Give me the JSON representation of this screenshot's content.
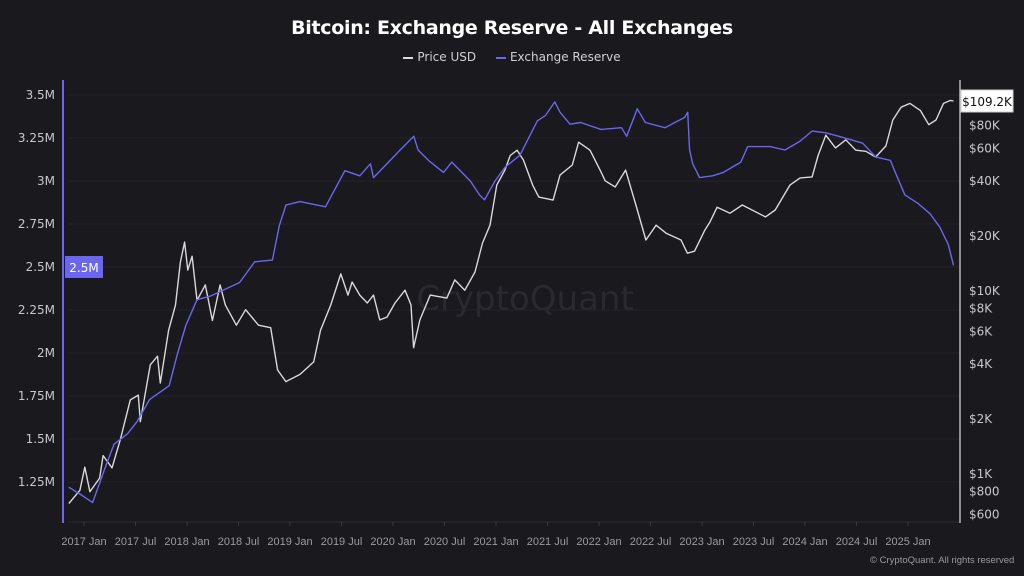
{
  "chart_data": {
    "type": "line",
    "title": "Bitcoin: Exchange Reserve - All Exchanges",
    "legend_position": "top",
    "grid": true,
    "watermark": "CryptoQuant",
    "copyright": "© CryptoQuant. All rights reserved",
    "x_ticks": [
      "2017 Jan",
      "2017 Jul",
      "2018 Jan",
      "2018 Jul",
      "2019 Jan",
      "2019 Jul",
      "2020 Jan",
      "2020 Jul",
      "2021 Jan",
      "2021 Jul",
      "2022 Jan",
      "2022 Jul",
      "2023 Jan",
      "2023 Jul",
      "2024 Jan",
      "2024 Jul",
      "2025 Jan"
    ],
    "left_axis": {
      "ticks": [
        "1.25M",
        "1.5M",
        "1.75M",
        "2M",
        "2.25M",
        "2.5M",
        "2.75M",
        "3M",
        "3.25M",
        "3.5M"
      ],
      "tick_values": [
        1.25,
        1.5,
        1.75,
        2,
        2.25,
        2.5,
        2.75,
        3,
        3.25,
        3.5
      ],
      "unit": "M",
      "current_label": "2.5M"
    },
    "right_axis": {
      "scale": "log",
      "ticks": [
        "$600",
        "$800",
        "$1K",
        "$2K",
        "$4K",
        "$6K",
        "$8K",
        "$10K",
        "$20K",
        "$40K",
        "$60K",
        "$80K"
      ],
      "tick_values": [
        600,
        800,
        1000,
        2000,
        4000,
        6000,
        8000,
        10000,
        20000,
        40000,
        60000,
        80000
      ],
      "current_label": "$109.2K"
    },
    "series": [
      {
        "name": "Price USD",
        "axis": "right",
        "color": "#d9d9dc",
        "points": [
          [
            "2016-11-08",
            690
          ],
          [
            "2016-12-17",
            815
          ],
          [
            "2017-01-04",
            1090
          ],
          [
            "2017-01-22",
            800
          ],
          [
            "2017-02-26",
            950
          ],
          [
            "2017-03-08",
            1260
          ],
          [
            "2017-04-09",
            1080
          ],
          [
            "2017-05-08",
            1540
          ],
          [
            "2017-06-13",
            2540
          ],
          [
            "2017-07-11",
            2700
          ],
          [
            "2017-07-18",
            1930
          ],
          [
            "2017-08-23",
            3950
          ],
          [
            "2017-09-18",
            4400
          ],
          [
            "2017-09-28",
            3140
          ],
          [
            "2017-10-27",
            6100
          ],
          [
            "2017-11-21",
            8400
          ],
          [
            "2017-12-08",
            14400
          ],
          [
            "2017-12-23",
            18500
          ],
          [
            "2018-01-04",
            13000
          ],
          [
            "2018-01-19",
            15500
          ],
          [
            "2018-02-06",
            8900
          ],
          [
            "2018-03-05",
            10800
          ],
          [
            "2018-03-30",
            6900
          ],
          [
            "2018-04-27",
            10800
          ],
          [
            "2018-05-15",
            8400
          ],
          [
            "2018-06-24",
            6500
          ],
          [
            "2018-07-26",
            7900
          ],
          [
            "2018-09-11",
            6500
          ],
          [
            "2018-10-24",
            6300
          ],
          [
            "2018-11-18",
            3700
          ],
          [
            "2018-12-17",
            3200
          ],
          [
            "2019-02-06",
            3500
          ],
          [
            "2019-03-24",
            4100
          ],
          [
            "2019-04-18",
            6100
          ],
          [
            "2019-05-24",
            8400
          ],
          [
            "2019-06-29",
            12400
          ],
          [
            "2019-07-24",
            9500
          ],
          [
            "2019-08-08",
            11200
          ],
          [
            "2019-09-05",
            9500
          ],
          [
            "2019-10-01",
            8600
          ],
          [
            "2019-10-23",
            9500
          ],
          [
            "2019-11-15",
            6950
          ],
          [
            "2019-12-10",
            7200
          ],
          [
            "2020-01-08",
            8600
          ],
          [
            "2020-02-13",
            10100
          ],
          [
            "2020-03-04",
            8400
          ],
          [
            "2020-03-13",
            4900
          ],
          [
            "2020-04-05",
            6950
          ],
          [
            "2020-05-11",
            9500
          ],
          [
            "2020-07-09",
            9150
          ],
          [
            "2020-08-07",
            11500
          ],
          [
            "2020-09-12",
            10100
          ],
          [
            "2020-10-18",
            12700
          ],
          [
            "2020-11-14",
            18300
          ],
          [
            "2020-12-10",
            22900
          ],
          [
            "2021-01-04",
            38000
          ],
          [
            "2021-02-02",
            45800
          ],
          [
            "2021-02-21",
            55000
          ],
          [
            "2021-03-15",
            58800
          ],
          [
            "2021-04-07",
            52000
          ],
          [
            "2021-05-09",
            38000
          ],
          [
            "2021-05-31",
            32600
          ],
          [
            "2021-07-21",
            31400
          ],
          [
            "2021-08-15",
            43000
          ],
          [
            "2021-09-28",
            48800
          ],
          [
            "2021-10-20",
            65000
          ],
          [
            "2021-11-30",
            58800
          ],
          [
            "2022-01-05",
            45800
          ],
          [
            "2022-01-23",
            40000
          ],
          [
            "2022-02-28",
            37000
          ],
          [
            "2022-04-04",
            45800
          ],
          [
            "2022-05-10",
            29500
          ],
          [
            "2022-06-15",
            19000
          ],
          [
            "2022-07-21",
            22900
          ],
          [
            "2022-08-26",
            20700
          ],
          [
            "2022-10-18",
            19000
          ],
          [
            "2022-11-10",
            16100
          ],
          [
            "2022-12-05",
            16500
          ],
          [
            "2023-01-11",
            21500
          ],
          [
            "2023-01-29",
            23800
          ],
          [
            "2023-02-24",
            28700
          ],
          [
            "2023-04-09",
            26600
          ],
          [
            "2023-05-22",
            29500
          ],
          [
            "2023-08-13",
            25400
          ],
          [
            "2023-09-17",
            27700
          ],
          [
            "2023-11-09",
            38000
          ],
          [
            "2023-12-14",
            41500
          ],
          [
            "2024-01-26",
            42000
          ],
          [
            "2024-02-17",
            55000
          ],
          [
            "2024-03-14",
            71000
          ],
          [
            "2024-04-18",
            60500
          ],
          [
            "2024-05-24",
            67000
          ],
          [
            "2024-06-29",
            58800
          ],
          [
            "2024-08-04",
            58000
          ],
          [
            "2024-09-08",
            54000
          ],
          [
            "2024-10-14",
            62000
          ],
          [
            "2024-11-08",
            86000
          ],
          [
            "2024-12-07",
            101000
          ],
          [
            "2025-01-08",
            106000
          ],
          [
            "2025-02-14",
            97000
          ],
          [
            "2025-03-14",
            81000
          ],
          [
            "2025-04-09",
            86000
          ],
          [
            "2025-05-05",
            106000
          ],
          [
            "2025-05-30",
            110000
          ],
          [
            "2025-06-10",
            109200
          ]
        ]
      },
      {
        "name": "Exchange Reserve",
        "axis": "left",
        "color": "#6b66f0",
        "points": [
          [
            "2016-11-08",
            1.22
          ],
          [
            "2016-12-17",
            1.18
          ],
          [
            "2017-02-01",
            1.13
          ],
          [
            "2017-03-12",
            1.32
          ],
          [
            "2017-04-16",
            1.47
          ],
          [
            "2017-06-03",
            1.53
          ],
          [
            "2017-07-06",
            1.6
          ],
          [
            "2017-08-21",
            1.73
          ],
          [
            "2017-10-29",
            1.81
          ],
          [
            "2017-11-27",
            1.99
          ],
          [
            "2017-12-27",
            2.16
          ],
          [
            "2018-02-06",
            2.31
          ],
          [
            "2018-03-22",
            2.33
          ],
          [
            "2018-07-05",
            2.41
          ],
          [
            "2018-08-28",
            2.53
          ],
          [
            "2018-10-30",
            2.54
          ],
          [
            "2018-11-24",
            2.74
          ],
          [
            "2018-12-17",
            2.86
          ],
          [
            "2019-02-06",
            2.88
          ],
          [
            "2019-05-05",
            2.85
          ],
          [
            "2019-07-13",
            3.06
          ],
          [
            "2019-09-05",
            3.03
          ],
          [
            "2019-10-12",
            3.1
          ],
          [
            "2019-10-23",
            3.02
          ],
          [
            "2019-12-04",
            3.09
          ],
          [
            "2020-01-26",
            3.18
          ],
          [
            "2020-03-14",
            3.26
          ],
          [
            "2020-03-29",
            3.18
          ],
          [
            "2020-05-05",
            3.12
          ],
          [
            "2020-06-28",
            3.05
          ],
          [
            "2020-07-27",
            3.11
          ],
          [
            "2020-10-01",
            3.0
          ],
          [
            "2020-11-03",
            2.92
          ],
          [
            "2020-11-21",
            2.89
          ],
          [
            "2020-12-28",
            3.0
          ],
          [
            "2021-02-03",
            3.08
          ],
          [
            "2021-03-25",
            3.15
          ],
          [
            "2021-05-26",
            3.35
          ],
          [
            "2021-06-24",
            3.38
          ],
          [
            "2021-07-27",
            3.46
          ],
          [
            "2021-08-15",
            3.4
          ],
          [
            "2021-09-20",
            3.33
          ],
          [
            "2021-10-27",
            3.34
          ],
          [
            "2022-01-08",
            3.3
          ],
          [
            "2022-03-20",
            3.31
          ],
          [
            "2022-04-08",
            3.26
          ],
          [
            "2022-05-15",
            3.42
          ],
          [
            "2022-06-13",
            3.34
          ],
          [
            "2022-08-22",
            3.31
          ],
          [
            "2022-10-31",
            3.37
          ],
          [
            "2022-11-11",
            3.4
          ],
          [
            "2022-11-18",
            3.18
          ],
          [
            "2022-11-29",
            3.1
          ],
          [
            "2022-12-23",
            3.02
          ],
          [
            "2023-02-08",
            3.03
          ],
          [
            "2023-03-16",
            3.05
          ],
          [
            "2023-05-17",
            3.11
          ],
          [
            "2023-06-11",
            3.2
          ],
          [
            "2023-08-29",
            3.2
          ],
          [
            "2023-10-21",
            3.18
          ],
          [
            "2023-12-13",
            3.23
          ],
          [
            "2024-01-26",
            3.29
          ],
          [
            "2024-03-14",
            3.28
          ],
          [
            "2024-04-30",
            3.26
          ],
          [
            "2024-06-11",
            3.24
          ],
          [
            "2024-07-23",
            3.22
          ],
          [
            "2024-09-08",
            3.14
          ],
          [
            "2024-10-30",
            3.12
          ],
          [
            "2024-11-17",
            3.05
          ],
          [
            "2024-12-20",
            2.92
          ],
          [
            "2025-02-06",
            2.87
          ],
          [
            "2025-03-18",
            2.81
          ],
          [
            "2025-04-23",
            2.73
          ],
          [
            "2025-05-22",
            2.63
          ],
          [
            "2025-06-10",
            2.51
          ]
        ]
      }
    ]
  }
}
